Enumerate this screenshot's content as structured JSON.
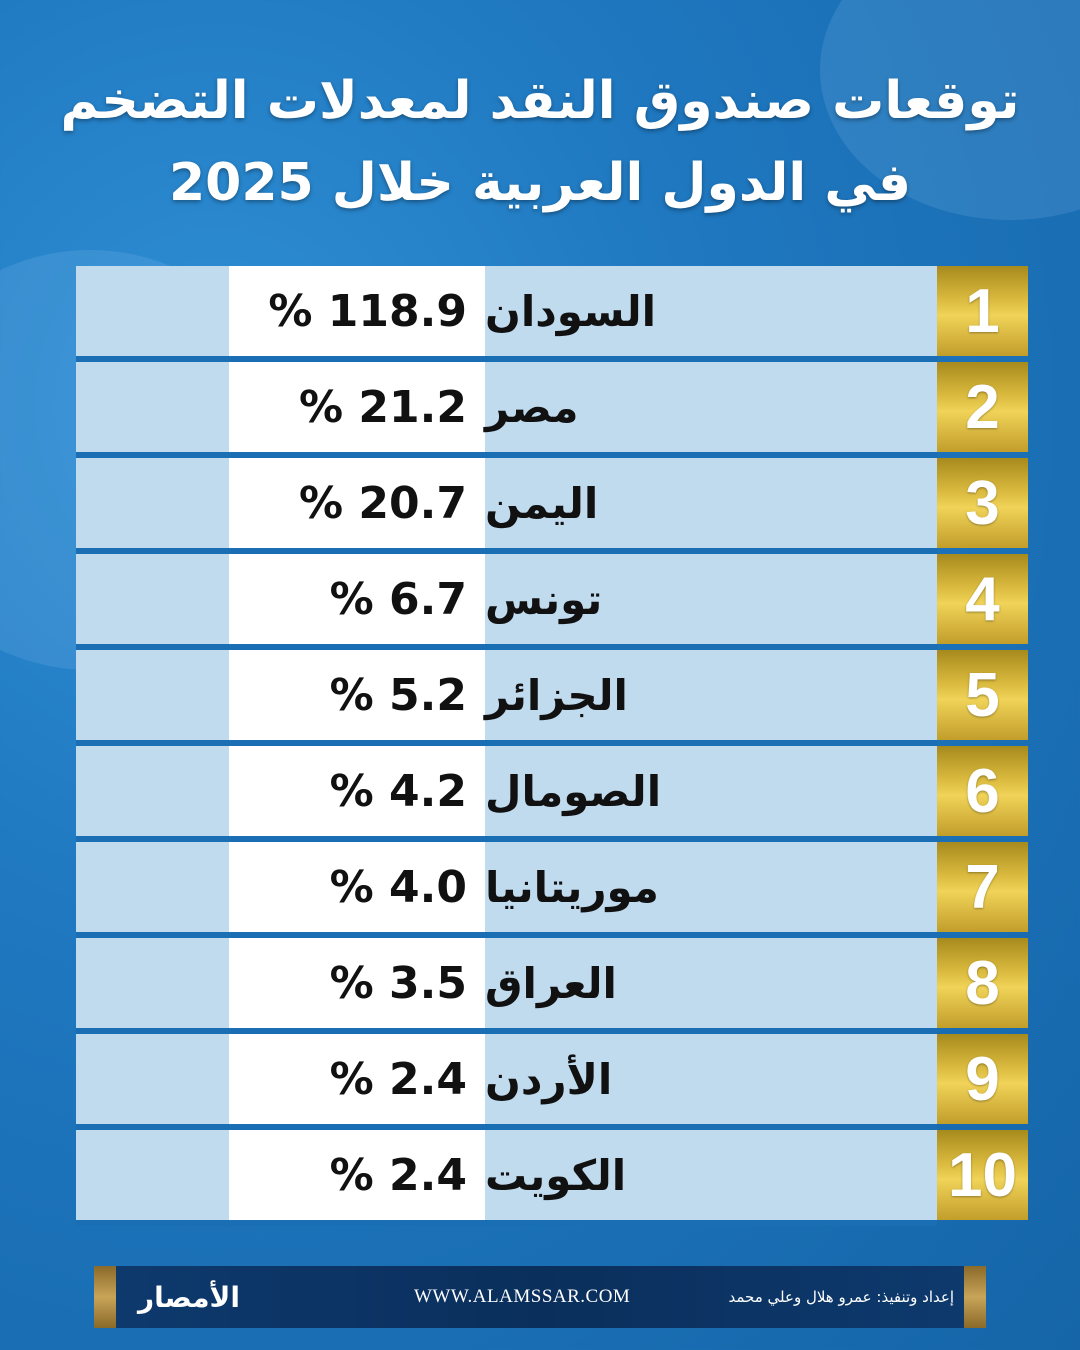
{
  "title": {
    "line1": "توقعات صندوق النقد لمعدلات التضخم",
    "line2": "في الدول العربية خلال 2025"
  },
  "rows": [
    {
      "rank": "1",
      "country": "السودان",
      "value": "% 118.9"
    },
    {
      "rank": "2",
      "country": "مصر",
      "value": "% 21.2"
    },
    {
      "rank": "3",
      "country": "اليمن",
      "value": "% 20.7"
    },
    {
      "rank": "4",
      "country": "تونس",
      "value": "% 6.7"
    },
    {
      "rank": "5",
      "country": "الجزائر",
      "value": "% 5.2"
    },
    {
      "rank": "6",
      "country": "الصومال",
      "value": "% 4.2"
    },
    {
      "rank": "7",
      "country": "موريتانيا",
      "value": "% 4.0"
    },
    {
      "rank": "8",
      "country": "العراق",
      "value": "% 3.5"
    },
    {
      "rank": "9",
      "country": "الأردن",
      "value": "% 2.4"
    },
    {
      "rank": "10",
      "country": "الكويت",
      "value": "% 2.4"
    }
  ],
  "footer": {
    "logo_text": "الأمصار",
    "website": "WWW.ALAMSSAR.COM",
    "credit": "إعداد وتنفيذ: عمرو هلال وعلي محمد"
  },
  "colors": {
    "background": "#1f78c0",
    "rank_gold": "#d7b73c",
    "row_light": "#c0daee",
    "value_bg": "#ffffff"
  }
}
